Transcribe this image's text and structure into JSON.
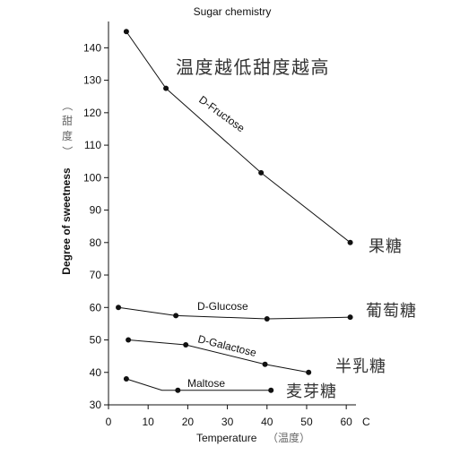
{
  "chart_data": {
    "type": "line",
    "title": "Sugar chemistry",
    "xlabel": "Temperature",
    "xlabel_note": "（温度）",
    "x_unit": "C",
    "ylabel": "Degree of sweetness",
    "ylabel_note": "（甜度）",
    "xlim": [
      0,
      62
    ],
    "ylim": [
      30,
      147
    ],
    "x_ticks": [
      0,
      10,
      20,
      30,
      40,
      50,
      60
    ],
    "y_ticks": [
      30,
      40,
      50,
      60,
      70,
      80,
      90,
      100,
      110,
      120,
      130,
      140
    ],
    "grid": false,
    "legend": "none",
    "annotation": "温度越低甜度越高",
    "series": [
      {
        "name": "D-Fructose",
        "cn_name": "果糖",
        "points": [
          [
            4.5,
            145
          ],
          [
            14.5,
            127.5
          ],
          [
            38.5,
            101.5
          ],
          [
            61,
            80
          ]
        ]
      },
      {
        "name": "D-Glucose",
        "cn_name": "葡萄糖",
        "points": [
          [
            2.5,
            60
          ],
          [
            17,
            57.5
          ],
          [
            40,
            56.5
          ],
          [
            61,
            57
          ]
        ]
      },
      {
        "name": "D-Galactose",
        "cn_name": "半乳糖",
        "points": [
          [
            5,
            50
          ],
          [
            19.5,
            48.5
          ],
          [
            39.5,
            42.5
          ],
          [
            50.5,
            40
          ]
        ]
      },
      {
        "name": "Maltose",
        "cn_name": "麦芽糖",
        "points": [
          [
            4.5,
            38
          ],
          [
            13.5,
            34.5
          ],
          [
            17.5,
            34.5
          ],
          [
            41,
            34.5
          ]
        ],
        "markers": [
          0,
          2,
          3
        ]
      }
    ]
  }
}
